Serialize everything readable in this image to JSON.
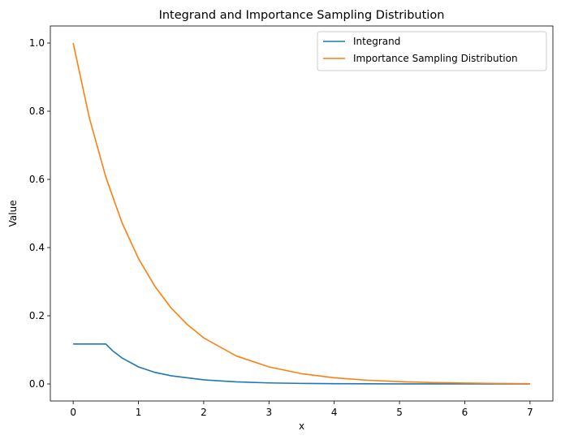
{
  "chart_data": {
    "type": "line",
    "title": "Integrand and Importance Sampling Distribution",
    "xlabel": "x",
    "ylabel": "Value",
    "xlim": [
      -0.35,
      7.35
    ],
    "ylim": [
      -0.05,
      1.05
    ],
    "xticks": [
      0,
      1,
      2,
      3,
      4,
      5,
      6,
      7
    ],
    "xtick_labels": [
      "0",
      "1",
      "2",
      "3",
      "4",
      "5",
      "6",
      "7"
    ],
    "yticks": [
      0.0,
      0.2,
      0.4,
      0.6,
      0.8,
      1.0
    ],
    "ytick_labels": [
      "0.0",
      "0.2",
      "0.4",
      "0.6",
      "0.8",
      "1.0"
    ],
    "grid": false,
    "legend_position": "upper right",
    "series": [
      {
        "name": "Integrand",
        "color": "#1f77b4",
        "x": [
          0,
          0.25,
          0.5,
          0.6,
          0.75,
          1.0,
          1.25,
          1.5,
          2.0,
          2.5,
          3.0,
          3.5,
          4.0,
          5.0,
          6.0,
          7.0
        ],
        "y": [
          0.117,
          0.117,
          0.117,
          0.098,
          0.076,
          0.05,
          0.034,
          0.024,
          0.012,
          0.006,
          0.003,
          0.0015,
          0.0008,
          0.0002,
          0.0001,
          0.0
        ]
      },
      {
        "name": "Importance Sampling Distribution",
        "color": "#ff7f0e",
        "x": [
          0,
          0.25,
          0.5,
          0.75,
          1.0,
          1.25,
          1.5,
          1.75,
          2.0,
          2.5,
          3.0,
          3.5,
          4.0,
          4.5,
          5.0,
          5.5,
          6.0,
          6.5,
          7.0
        ],
        "y": [
          1.0,
          0.779,
          0.607,
          0.472,
          0.368,
          0.287,
          0.223,
          0.174,
          0.135,
          0.082,
          0.05,
          0.03,
          0.018,
          0.011,
          0.0067,
          0.0041,
          0.0025,
          0.0015,
          0.0009
        ]
      }
    ]
  }
}
